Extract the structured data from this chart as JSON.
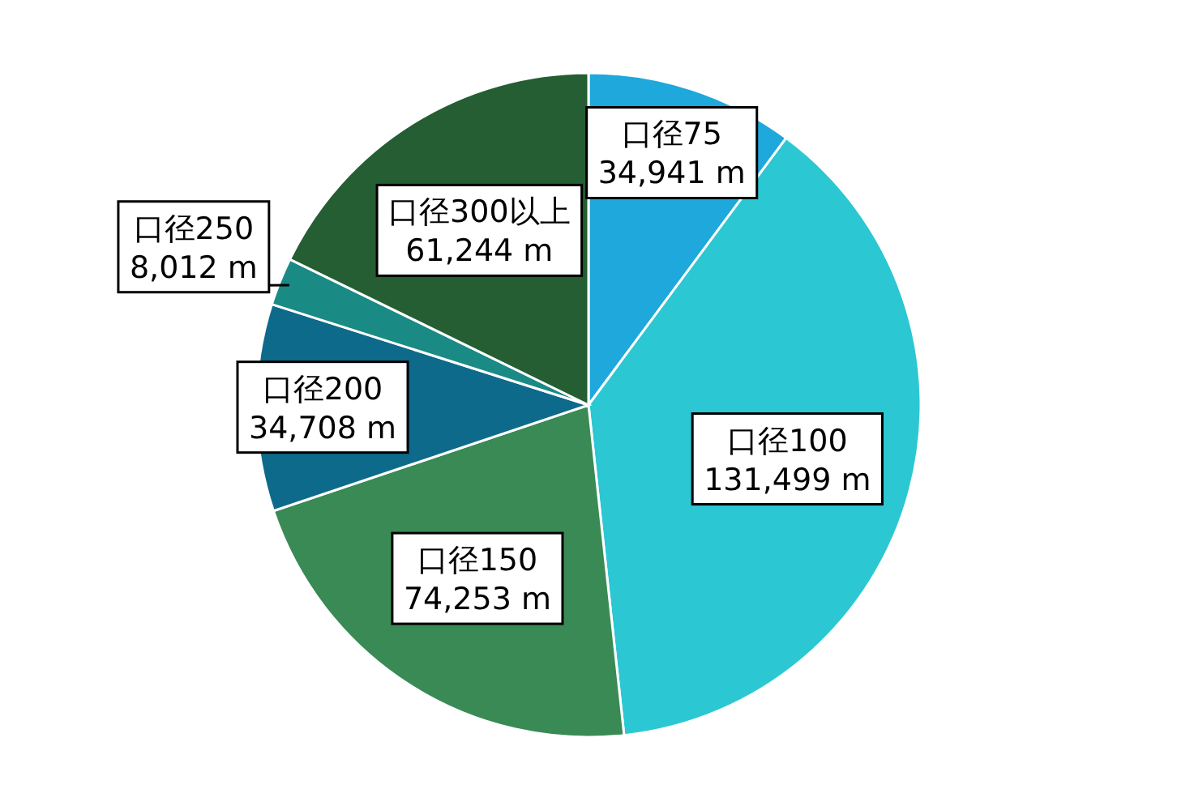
{
  "chart_data": {
    "type": "pie",
    "categories": [
      "口径75",
      "口径100",
      "口径150",
      "口径200",
      "口径250",
      "口径300以上"
    ],
    "values": [
      34941,
      131499,
      74253,
      34708,
      8012,
      61244
    ],
    "value_labels": [
      "34,941 m",
      "131,499 m",
      "74,253 m",
      "34,708 m",
      "8,012 m",
      "61,244 m"
    ],
    "colors": [
      "#1ea8dc",
      "#2bc7d3",
      "#3a8a55",
      "#0e6a8a",
      "#1a8a85",
      "#245e32"
    ]
  }
}
